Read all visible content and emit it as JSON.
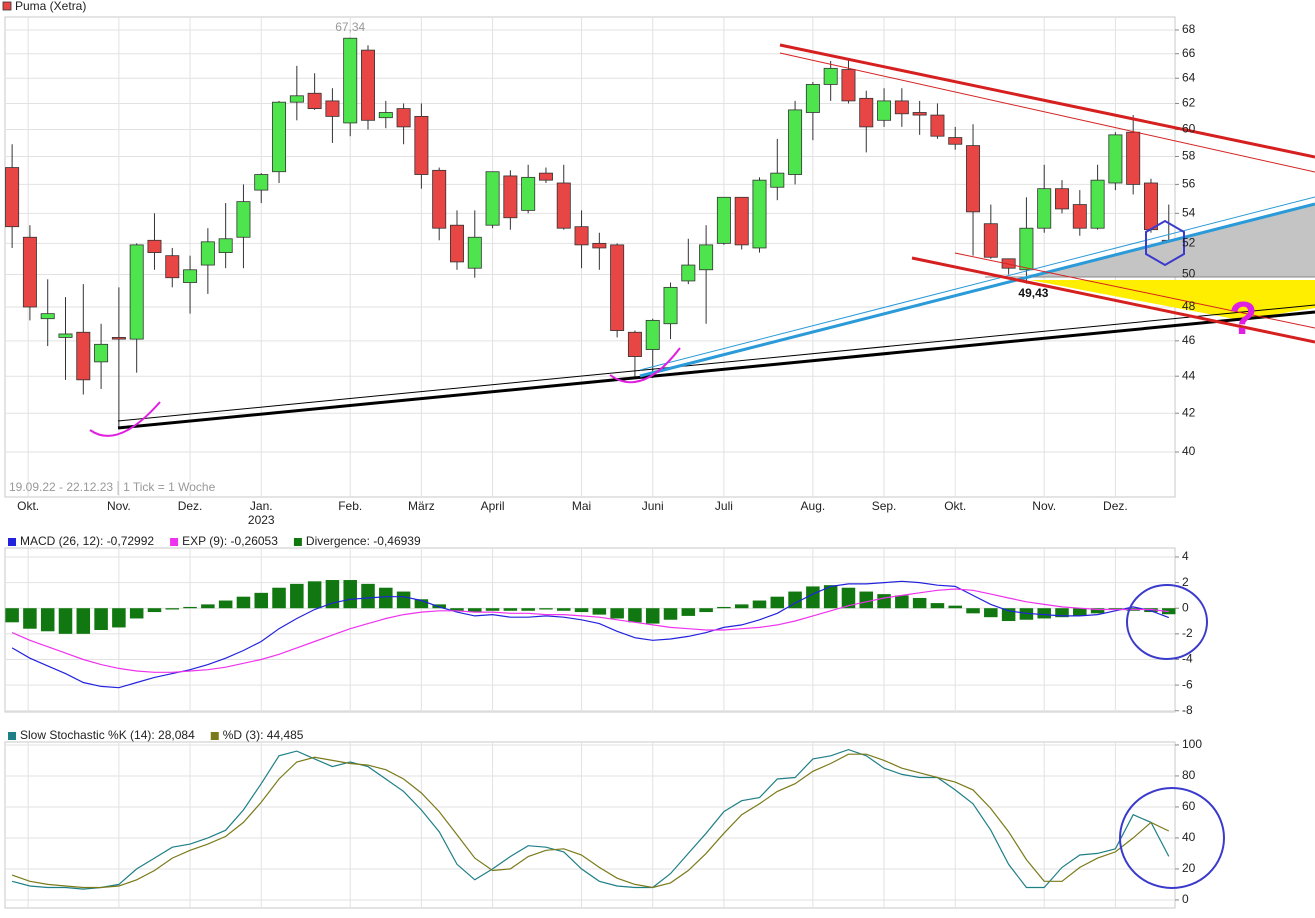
{
  "chart_data": [
    {
      "type": "candlestick",
      "title": "Puma (Xetra)",
      "legend_color": "#e84545",
      "up_color": "#4ee44e",
      "down_color": "#e84545",
      "log_scale": true,
      "grid": true,
      "xlim": [
        -0.4,
        65.35
      ],
      "ylim": [
        37.8,
        69.12
      ],
      "yticks": [
        40,
        42,
        44,
        46,
        48,
        50,
        52,
        54,
        56,
        58,
        60,
        62,
        64,
        66,
        68
      ],
      "xticks": [
        {
          "value": 0.9,
          "label": "Okt."
        },
        {
          "value": 6,
          "label": "Nov."
        },
        {
          "value": 10,
          "label": "Dez."
        },
        {
          "value": 14,
          "label": "Jan.",
          "sublabel": "2023"
        },
        {
          "value": 19,
          "label": "Feb."
        },
        {
          "value": 23,
          "label": "März"
        },
        {
          "value": 27,
          "label": "April"
        },
        {
          "value": 32,
          "label": "Mai"
        },
        {
          "value": 36,
          "label": "Juni"
        },
        {
          "value": 40,
          "label": "Juli"
        },
        {
          "value": 45,
          "label": "Aug."
        },
        {
          "value": 49,
          "label": "Sep."
        },
        {
          "value": 53,
          "label": "Okt."
        },
        {
          "value": 58,
          "label": "Nov."
        },
        {
          "value": 62,
          "label": "Dez."
        }
      ],
      "open": [
        57.2,
        52.4,
        47.3,
        46.2,
        46.5,
        44.8,
        46.2,
        46.1,
        52.2,
        51.2,
        49.5,
        50.6,
        51.4,
        52.4,
        55.6,
        56.9,
        62.1,
        62.8,
        62.2,
        60.5,
        66.3,
        60.9,
        61.6,
        61.0,
        57.0,
        53.2,
        50.4,
        53.2,
        56.6,
        54.2,
        56.8,
        56.1,
        53.1,
        52.0,
        51.9,
        46.5,
        45.5,
        47.0,
        49.6,
        50.3,
        52.0,
        55.1,
        51.7,
        55.8,
        56.7,
        61.3,
        63.5,
        64.7,
        62.4,
        60.7,
        62.2,
        61.3,
        61.1,
        59.4,
        58.8,
        53.3,
        51.0,
        50.3,
        53.0,
        55.7,
        54.6,
        53.0,
        56.1,
        59.8,
        56.1,
        52.2
      ],
      "high": [
        58.9,
        53.2,
        49.7,
        48.6,
        49.4,
        47.0,
        49.2,
        52.0,
        54.0,
        51.7,
        51.2,
        53.0,
        54.7,
        56.0,
        56.8,
        62.2,
        65.0,
        64.4,
        63.2,
        67.34,
        66.7,
        62.2,
        62.0,
        62.0,
        57.2,
        54.2,
        54.2,
        56.9,
        57.0,
        57.4,
        57.2,
        57.4,
        54.2,
        52.7,
        52.0,
        46.6,
        47.3,
        49.5,
        52.3,
        53.2,
        55.1,
        55.1,
        56.5,
        59.3,
        62.2,
        63.7,
        65.4,
        65.6,
        63.0,
        63.2,
        63.2,
        62.2,
        62.0,
        60.2,
        60.4,
        54.6,
        51.0,
        55.1,
        57.4,
        56.3,
        55.6,
        57.4,
        59.8,
        61.1,
        56.4,
        54.6
      ],
      "low": [
        51.7,
        47.2,
        45.7,
        43.8,
        43.0,
        43.3,
        41.3,
        44.2,
        50.3,
        49.2,
        47.6,
        48.8,
        50.4,
        50.4,
        54.7,
        56.1,
        60.7,
        61.5,
        59.0,
        59.5,
        60.0,
        60.1,
        58.9,
        55.7,
        52.2,
        50.3,
        49.8,
        53.0,
        52.9,
        54.0,
        56.1,
        52.9,
        50.4,
        50.3,
        46.2,
        43.9,
        43.9,
        46.1,
        49.4,
        47.0,
        51.9,
        51.6,
        51.4,
        54.9,
        56.0,
        59.2,
        62.2,
        62.0,
        58.3,
        60.2,
        60.2,
        59.6,
        59.3,
        58.5,
        51.2,
        51.0,
        50.0,
        49.43,
        52.7,
        54.0,
        52.5,
        52.9,
        55.6,
        55.3,
        52.7,
        50.4
      ],
      "close": [
        53.1,
        48.0,
        47.6,
        46.4,
        43.8,
        45.8,
        46.1,
        51.9,
        51.4,
        49.8,
        50.3,
        52.1,
        52.3,
        54.8,
        56.7,
        62.1,
        62.6,
        61.6,
        61.0,
        67.3,
        60.7,
        61.3,
        60.2,
        56.7,
        53.0,
        50.8,
        52.4,
        56.9,
        53.7,
        56.5,
        56.3,
        53.0,
        51.9,
        51.7,
        46.6,
        45.1,
        47.2,
        49.2,
        50.6,
        51.9,
        55.1,
        51.9,
        56.3,
        56.8,
        61.5,
        63.5,
        64.8,
        62.2,
        60.2,
        62.2,
        61.2,
        61.1,
        59.5,
        58.9,
        54.1,
        51.1,
        50.4,
        53.0,
        55.7,
        54.3,
        53.0,
        56.3,
        59.6,
        56.0,
        52.9,
        50.8
      ],
      "annotations": [
        {
          "x": 19,
          "value": 67.34,
          "label": "67,34"
        },
        {
          "x": 57,
          "value": 49.43,
          "label": "49,43"
        },
        {
          "label": "?"
        }
      ],
      "footnotes": [
        "19.09.22 - 22.12.23",
        "1 Tick = 1 Woche"
      ]
    },
    {
      "type": "line",
      "grid": true,
      "xlim": [
        -0.4,
        65.35
      ],
      "ylim": [
        -8.1,
        4.7
      ],
      "yticks": [
        -8,
        -6,
        -4,
        -2,
        0,
        2,
        4
      ],
      "series": [
        {
          "name": "MACD (26, 12): -0,72992",
          "color": "#2222dd",
          "values": [
            -3.1,
            -3.9,
            -4.5,
            -5.1,
            -5.8,
            -6.1,
            -6.2,
            -5.8,
            -5.4,
            -5.1,
            -4.8,
            -4.4,
            -3.9,
            -3.3,
            -2.6,
            -1.6,
            -0.8,
            -0.1,
            0.4,
            0.7,
            0.8,
            0.9,
            0.9,
            0.6,
            0.1,
            -0.3,
            -0.6,
            -0.5,
            -0.7,
            -0.7,
            -0.6,
            -0.7,
            -0.9,
            -1.2,
            -1.8,
            -2.3,
            -2.5,
            -2.4,
            -2.2,
            -1.9,
            -1.5,
            -1.3,
            -0.9,
            -0.4,
            0.4,
            1.1,
            1.7,
            1.9,
            1.9,
            2.0,
            2.1,
            2.0,
            1.8,
            1.7,
            1.0,
            0.3,
            -0.2,
            -0.4,
            -0.5,
            -0.6,
            -0.6,
            -0.5,
            -0.2,
            0.1,
            -0.2,
            -0.72992
          ]
        },
        {
          "name": "EXP (9): -0,26053",
          "color": "#ee33ee",
          "values": [
            -1.9,
            -2.5,
            -3.0,
            -3.5,
            -4.0,
            -4.4,
            -4.7,
            -4.9,
            -5.0,
            -5.0,
            -4.9,
            -4.8,
            -4.6,
            -4.3,
            -4.0,
            -3.6,
            -3.1,
            -2.6,
            -2.1,
            -1.6,
            -1.2,
            -0.8,
            -0.5,
            -0.3,
            -0.2,
            -0.2,
            -0.3,
            -0.3,
            -0.4,
            -0.4,
            -0.5,
            -0.5,
            -0.6,
            -0.7,
            -0.9,
            -1.1,
            -1.3,
            -1.5,
            -1.6,
            -1.7,
            -1.7,
            -1.6,
            -1.5,
            -1.3,
            -1.0,
            -0.6,
            -0.2,
            0.2,
            0.5,
            0.8,
            1.0,
            1.2,
            1.4,
            1.5,
            1.4,
            1.1,
            0.8,
            0.5,
            0.3,
            0.1,
            0.0,
            -0.1,
            -0.1,
            -0.1,
            -0.1,
            -0.26053
          ]
        },
        {
          "name": "Divergence: -0,46939",
          "color": "#117711",
          "type": "bar",
          "values": [
            -1.1,
            -1.6,
            -1.8,
            -2.0,
            -2.0,
            -1.7,
            -1.5,
            -0.8,
            -0.3,
            -0.1,
            0.1,
            0.3,
            0.6,
            0.9,
            1.2,
            1.6,
            1.9,
            2.1,
            2.2,
            2.2,
            1.9,
            1.6,
            1.3,
            0.7,
            0.3,
            -0.2,
            -0.3,
            -0.2,
            -0.2,
            -0.2,
            -0.1,
            -0.2,
            -0.3,
            -0.5,
            -0.8,
            -1.1,
            -1.2,
            -0.9,
            -0.6,
            -0.3,
            0.1,
            0.3,
            0.6,
            0.9,
            1.3,
            1.7,
            1.8,
            1.6,
            1.3,
            1.1,
            1.0,
            0.8,
            0.4,
            0.2,
            -0.4,
            -0.7,
            -1.0,
            -0.9,
            -0.8,
            -0.7,
            -0.6,
            -0.4,
            -0.1,
            -0.2,
            -0.3,
            -0.46939
          ]
        }
      ]
    },
    {
      "type": "line",
      "grid": true,
      "xlim": [
        -0.4,
        65.35
      ],
      "ylim": [
        -5.2,
        101.9
      ],
      "yticks": [
        0,
        20,
        40,
        60,
        80,
        100
      ],
      "series": [
        {
          "name": "Slow Stochastic %K (14): 28,084",
          "color": "#1f7f86",
          "values": [
            12,
            9,
            8,
            8,
            7,
            8,
            10,
            20,
            27,
            34,
            36,
            40,
            45,
            58,
            75,
            93,
            96,
            91,
            86,
            89,
            86,
            78,
            70,
            58,
            44,
            23,
            13,
            20,
            28,
            35,
            34,
            31,
            20,
            12,
            9,
            8,
            8,
            17,
            30,
            43,
            57,
            64,
            66,
            78,
            79,
            91,
            93,
            97,
            93,
            85,
            81,
            79,
            79,
            71,
            62,
            45,
            23,
            8,
            8,
            21,
            29,
            30,
            33,
            55,
            50,
            28.084
          ]
        },
        {
          "name": "%D (3): 44,485",
          "color": "#7a7a1a",
          "values": [
            16,
            12,
            10,
            9,
            8,
            8,
            9,
            13,
            19,
            27,
            32,
            36,
            41,
            50,
            63,
            78,
            89,
            92,
            90,
            88,
            87,
            84,
            78,
            69,
            57,
            42,
            27,
            19,
            20,
            28,
            32,
            33,
            29,
            21,
            14,
            10,
            8,
            11,
            19,
            30,
            43,
            55,
            62,
            70,
            75,
            83,
            88,
            94,
            94,
            90,
            85,
            82,
            79,
            76,
            71,
            59,
            44,
            26,
            12,
            12,
            21,
            27,
            31,
            40,
            50,
            44.485
          ]
        }
      ]
    }
  ]
}
